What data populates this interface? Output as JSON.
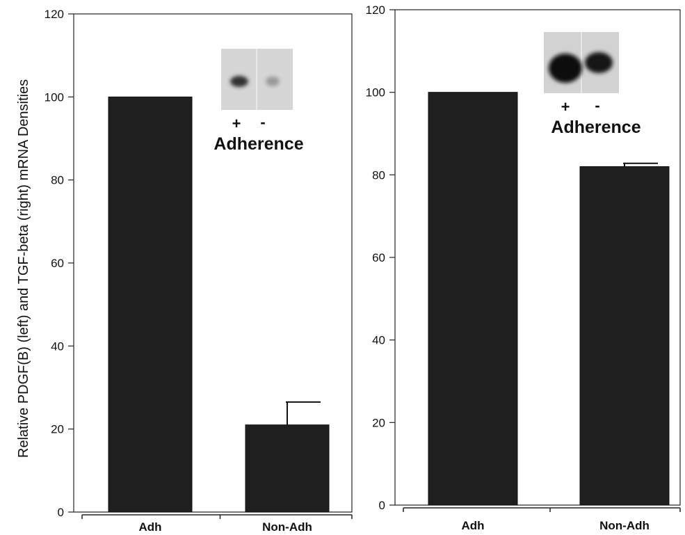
{
  "figure": {
    "ylabel": "Relative PDGF(B) (left) and TGF-beta (right) mRNA Densities"
  },
  "chart_data": [
    {
      "type": "bar",
      "categories": [
        "Adh",
        "Non-Adh"
      ],
      "values": [
        100,
        21
      ],
      "error": [
        0,
        5.5
      ],
      "ylim": [
        0,
        120
      ],
      "yticks": [
        "0",
        "20",
        "40",
        "60",
        "80",
        "100",
        "120"
      ],
      "bar_color": "#1f1f1f",
      "inset": {
        "label": "Adherence",
        "lanes": [
          "+",
          "-"
        ]
      }
    },
    {
      "type": "bar",
      "categories": [
        "Adh",
        "Non-Adh"
      ],
      "values": [
        100,
        82
      ],
      "error": [
        0,
        0.8
      ],
      "ylim": [
        0,
        120
      ],
      "yticks": [
        "0",
        "20",
        "40",
        "60",
        "80",
        "100",
        "120"
      ],
      "bar_color": "#1f1f1f",
      "inset": {
        "label": "Adherence",
        "lanes": [
          "+",
          "-"
        ]
      }
    }
  ]
}
